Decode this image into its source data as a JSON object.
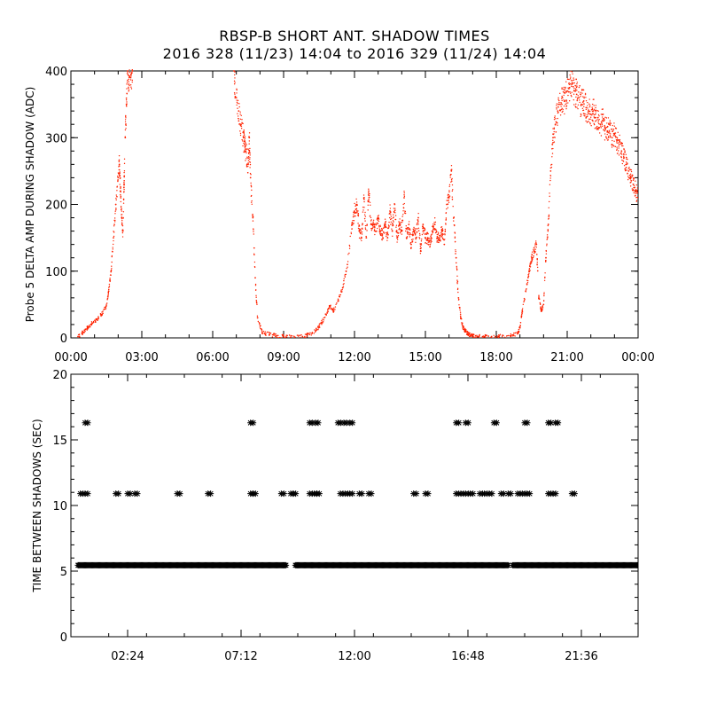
{
  "title": "RBSP-B SHORT ANT. SHADOW TIMES",
  "subtitle": "2016 328 (11/23) 14:04 to 2016 329 (11/24) 14:04",
  "colors": {
    "top_points": "#ff2200",
    "bottom_points": "#000000",
    "axes": "#000000"
  },
  "chart_data": [
    {
      "type": "scatter",
      "ylabel": "Probe 5 DELTA AMP DURING SHADOW (ADC)",
      "xlim": [
        0,
        24
      ],
      "ylim": [
        0,
        400
      ],
      "xticks": [
        0,
        3,
        6,
        9,
        12,
        15,
        18,
        21,
        24
      ],
      "xtick_labels": [
        "00:00",
        "03:00",
        "06:00",
        "09:00",
        "12:00",
        "15:00",
        "18:00",
        "21:00",
        "00:00"
      ],
      "yticks": [
        0,
        100,
        200,
        300,
        400
      ],
      "ytick_labels": [
        "0",
        "100",
        "200",
        "300",
        "400"
      ],
      "series": [
        {
          "x": [
            0.3,
            0.5,
            0.7,
            0.9,
            1.1,
            1.3,
            1.5,
            1.6,
            1.7,
            1.8,
            1.9,
            2.0,
            2.05,
            2.1,
            2.15,
            2.2,
            2.25,
            2.3,
            2.35,
            2.4,
            2.45,
            2.5,
            2.55,
            2.6,
            6.9,
            7.0,
            7.1,
            7.2,
            7.3,
            7.35,
            7.4,
            7.5,
            7.55,
            7.6,
            7.7,
            7.8,
            7.9,
            8.1,
            8.4,
            8.7,
            9.0,
            9.3,
            9.8,
            10.1,
            10.4,
            10.6,
            10.8,
            10.95,
            11.1,
            11.3,
            11.5,
            11.7,
            11.9,
            12.0,
            12.1,
            12.2,
            12.3,
            12.4,
            12.5,
            12.6,
            12.7,
            12.8,
            12.9,
            13.0,
            13.1,
            13.2,
            13.3,
            13.4,
            13.5,
            13.6,
            13.7,
            13.8,
            13.9,
            14.0,
            14.1,
            14.2,
            14.3,
            14.4,
            14.5,
            14.6,
            14.7,
            14.8,
            14.9,
            15.0,
            15.1,
            15.2,
            15.3,
            15.4,
            15.5,
            15.6,
            15.7,
            15.8,
            15.9,
            16.0,
            16.1,
            16.2,
            16.3,
            16.4,
            16.5,
            16.6,
            16.7,
            16.8,
            16.9,
            17.0,
            17.2,
            17.5,
            17.8,
            18.1,
            18.6,
            18.9,
            19.0,
            19.1,
            19.3,
            19.4,
            19.5,
            19.6,
            19.7,
            19.8,
            19.9,
            20.0,
            20.1,
            20.2,
            20.3,
            20.4,
            20.5,
            20.6,
            20.7,
            20.8,
            20.9,
            21.0,
            21.1,
            21.2,
            21.3,
            21.4,
            21.5,
            21.6,
            21.7,
            21.8,
            21.9,
            22.0,
            22.1,
            22.2,
            22.3,
            22.4,
            22.5,
            22.6,
            22.7,
            22.8,
            22.9,
            23.0,
            23.1,
            23.2,
            23.3,
            23.4,
            23.5,
            23.6,
            23.7,
            23.8,
            23.9,
            24.0
          ],
          "y": [
            2,
            8,
            15,
            22,
            28,
            35,
            48,
            70,
            100,
            150,
            200,
            240,
            260,
            220,
            180,
            160,
            230,
            300,
            350,
            400,
            380,
            405,
            395,
            400,
            400,
            360,
            340,
            320,
            300,
            290,
            280,
            260,
            300,
            240,
            180,
            90,
            30,
            8,
            5,
            3,
            2,
            1,
            2,
            5,
            12,
            22,
            35,
            48,
            40,
            55,
            75,
            110,
            170,
            190,
            200,
            160,
            150,
            210,
            150,
            220,
            170,
            170,
            160,
            180,
            160,
            150,
            170,
            150,
            190,
            160,
            200,
            150,
            170,
            160,
            210,
            150,
            170,
            140,
            160,
            150,
            180,
            130,
            170,
            150,
            150,
            140,
            160,
            170,
            150,
            150,
            160,
            140,
            200,
            210,
            250,
            180,
            120,
            60,
            30,
            15,
            10,
            6,
            4,
            3,
            2,
            2,
            2,
            2,
            3,
            6,
            15,
            40,
            80,
            100,
            120,
            130,
            140,
            60,
            40,
            50,
            120,
            170,
            250,
            300,
            320,
            340,
            350,
            360,
            355,
            370,
            375,
            380,
            370,
            365,
            360,
            350,
            355,
            345,
            340,
            335,
            340,
            330,
            330,
            320,
            325,
            315,
            310,
            320,
            300,
            305,
            295,
            290,
            280,
            270,
            260,
            250,
            240,
            230,
            220,
            210
          ]
        }
      ]
    },
    {
      "type": "scatter",
      "ylabel": "TIME BETWEEN SHADOWS (SEC)",
      "xlim": [
        0,
        24
      ],
      "ylim": [
        0,
        20
      ],
      "xticks": [
        2.4,
        7.2,
        12,
        16.8,
        21.6
      ],
      "xtick_labels": [
        "02:24",
        "07:12",
        "12:00",
        "16:48",
        "21:36"
      ],
      "yticks": [
        0,
        5,
        10,
        15,
        20
      ],
      "ytick_labels": [
        "0",
        "5",
        "10",
        "15",
        "20"
      ],
      "base_band": {
        "y": 5.45,
        "x_ranges": [
          [
            0.3,
            9.1
          ],
          [
            9.5,
            18.5
          ],
          [
            18.7,
            24
          ]
        ]
      },
      "series": [
        {
          "x": [
            0.6,
            7.6,
            10.1,
            10.35,
            11.3,
            11.55,
            11.8,
            16.3,
            16.7,
            17.9,
            19.2,
            20.2,
            20.5
          ],
          "y": [
            16.3,
            16.3,
            16.3,
            16.3,
            16.3,
            16.3,
            16.3,
            16.3,
            16.3,
            16.3,
            16.3,
            16.3,
            16.3
          ]
        },
        {
          "x": [
            0.4,
            0.6,
            1.9,
            2.4,
            2.7,
            4.5,
            5.8,
            7.6,
            7.7,
            8.9,
            9.3,
            9.4,
            10.1,
            10.3,
            10.4,
            11.4,
            11.6,
            11.8,
            12.2,
            12.6,
            14.5,
            15.0,
            16.3,
            16.5,
            16.7,
            16.9,
            17.3,
            17.5,
            17.7,
            18.2,
            18.5,
            18.9,
            19.1,
            19.3,
            20.2,
            20.4,
            21.2
          ],
          "y": [
            10.9,
            10.9,
            10.9,
            10.9,
            10.9,
            10.9,
            10.9,
            10.9,
            10.9,
            10.9,
            10.9,
            10.9,
            10.9,
            10.9,
            10.9,
            10.9,
            10.9,
            10.9,
            10.9,
            10.9,
            10.9,
            10.9,
            10.9,
            10.9,
            10.9,
            10.9,
            10.9,
            10.9,
            10.9,
            10.9,
            10.9,
            10.9,
            10.9,
            10.9,
            10.9,
            10.9,
            10.9
          ]
        }
      ]
    }
  ]
}
